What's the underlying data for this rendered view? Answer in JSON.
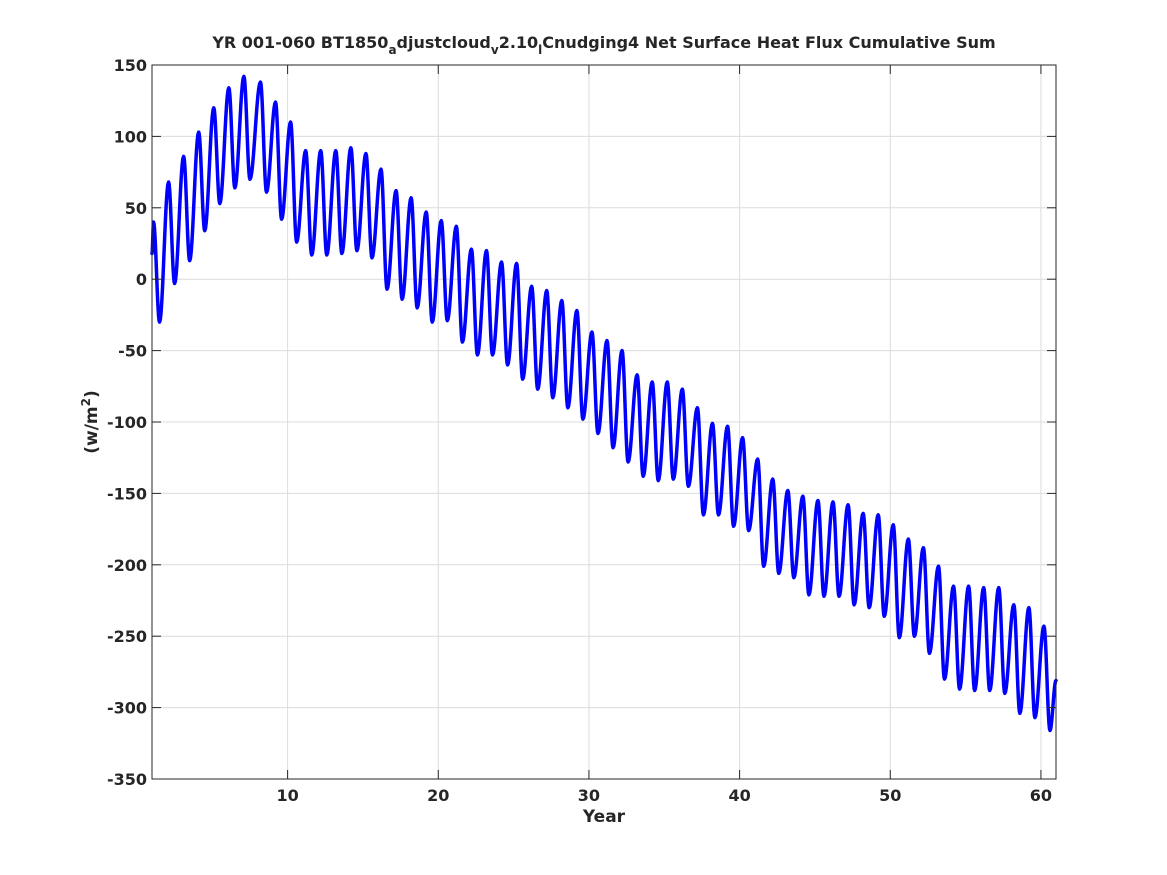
{
  "chart_data": {
    "type": "line",
    "title_parts": [
      {
        "text": "YR 001-060 BT1850",
        "sub": false
      },
      {
        "text": "a",
        "sub": true
      },
      {
        "text": "djustcloud",
        "sub": false
      },
      {
        "text": "v",
        "sub": true
      },
      {
        "text": "2.10",
        "sub": false
      },
      {
        "text": "l",
        "sub": true
      },
      {
        "text": "Cnudging4 Net Surface Heat Flux  Cumulative Sum",
        "sub": false
      }
    ],
    "xlabel": "Year",
    "ylabel": "(w/m",
    "ylabel_sup": "2",
    "ylabel_close": ")",
    "xlim": [
      1,
      61
    ],
    "ylim": [
      -350,
      150
    ],
    "xticks": [
      10,
      20,
      30,
      40,
      50,
      60
    ],
    "xtick_labels": [
      "10",
      "20",
      "30",
      "40",
      "50",
      "60"
    ],
    "yticks": [
      150,
      100,
      50,
      0,
      -50,
      -100,
      -150,
      -200,
      -250,
      -300,
      -350
    ],
    "ytick_labels": [
      "150",
      "100",
      "50",
      "0",
      "-50",
      "-100",
      "-150",
      "-200",
      "-250",
      "-300",
      "-350"
    ],
    "grid": true,
    "line_color": "#0000ff",
    "series": [
      {
        "note": "annual-cycle oscillation; peaks/troughs per year",
        "peaks": [
          [
            1.1,
            40
          ],
          [
            2.1,
            68
          ],
          [
            3.1,
            86
          ],
          [
            4.1,
            103
          ],
          [
            5.1,
            120
          ],
          [
            6.1,
            134
          ],
          [
            7.1,
            142
          ],
          [
            8.2,
            138
          ],
          [
            9.2,
            124
          ],
          [
            10.2,
            110
          ],
          [
            11.2,
            90
          ],
          [
            12.2,
            90
          ],
          [
            13.2,
            90
          ],
          [
            14.2,
            92
          ],
          [
            15.2,
            88
          ],
          [
            16.2,
            77
          ],
          [
            17.2,
            62
          ],
          [
            18.2,
            57
          ],
          [
            19.2,
            47
          ],
          [
            20.2,
            41
          ],
          [
            21.2,
            37
          ],
          [
            22.2,
            21
          ],
          [
            23.2,
            20
          ],
          [
            24.2,
            12
          ],
          [
            25.2,
            11
          ],
          [
            26.2,
            -5
          ],
          [
            27.2,
            -8
          ],
          [
            28.2,
            -15
          ],
          [
            29.2,
            -22
          ],
          [
            30.2,
            -37
          ],
          [
            31.2,
            -43
          ],
          [
            32.2,
            -50
          ],
          [
            33.2,
            -67
          ],
          [
            34.2,
            -72
          ],
          [
            35.2,
            -72
          ],
          [
            36.2,
            -77
          ],
          [
            37.2,
            -90
          ],
          [
            38.2,
            -101
          ],
          [
            39.2,
            -103
          ],
          [
            40.2,
            -111
          ],
          [
            41.2,
            -126
          ],
          [
            42.2,
            -140
          ],
          [
            43.2,
            -148
          ],
          [
            44.2,
            -152
          ],
          [
            45.2,
            -155
          ],
          [
            46.2,
            -156
          ],
          [
            47.2,
            -158
          ],
          [
            48.2,
            -164
          ],
          [
            49.2,
            -165
          ],
          [
            50.2,
            -172
          ],
          [
            51.2,
            -182
          ],
          [
            52.2,
            -188
          ],
          [
            53.2,
            -201
          ],
          [
            54.2,
            -215
          ],
          [
            55.2,
            -215
          ],
          [
            56.2,
            -216
          ],
          [
            57.2,
            -216
          ],
          [
            58.2,
            -228
          ],
          [
            59.2,
            -230
          ],
          [
            60.2,
            -243
          ]
        ],
        "troughs": [
          [
            1.5,
            -30
          ],
          [
            2.5,
            -3
          ],
          [
            3.5,
            13
          ],
          [
            4.5,
            34
          ],
          [
            5.5,
            53
          ],
          [
            6.5,
            64
          ],
          [
            7.5,
            70
          ],
          [
            8.6,
            61
          ],
          [
            9.6,
            42
          ],
          [
            10.6,
            26
          ],
          [
            11.6,
            17
          ],
          [
            12.6,
            17
          ],
          [
            13.6,
            18
          ],
          [
            14.6,
            20
          ],
          [
            15.6,
            15
          ],
          [
            16.6,
            -7
          ],
          [
            17.6,
            -14
          ],
          [
            18.6,
            -20
          ],
          [
            19.6,
            -30
          ],
          [
            20.6,
            -29
          ],
          [
            21.6,
            -44
          ],
          [
            22.6,
            -53
          ],
          [
            23.6,
            -53
          ],
          [
            24.6,
            -60
          ],
          [
            25.6,
            -70
          ],
          [
            26.6,
            -77
          ],
          [
            27.6,
            -83
          ],
          [
            28.6,
            -90
          ],
          [
            29.6,
            -98
          ],
          [
            30.6,
            -108
          ],
          [
            31.6,
            -118
          ],
          [
            32.6,
            -128
          ],
          [
            33.6,
            -138
          ],
          [
            34.6,
            -141
          ],
          [
            35.6,
            -140
          ],
          [
            36.6,
            -145
          ],
          [
            37.6,
            -165
          ],
          [
            38.6,
            -165
          ],
          [
            39.6,
            -173
          ],
          [
            40.6,
            -176
          ],
          [
            41.6,
            -201
          ],
          [
            42.6,
            -206
          ],
          [
            43.6,
            -209
          ],
          [
            44.6,
            -221
          ],
          [
            45.6,
            -222
          ],
          [
            46.6,
            -222
          ],
          [
            47.6,
            -228
          ],
          [
            48.6,
            -230
          ],
          [
            49.6,
            -236
          ],
          [
            50.6,
            -251
          ],
          [
            51.6,
            -250
          ],
          [
            52.6,
            -262
          ],
          [
            53.6,
            -280
          ],
          [
            54.6,
            -287
          ],
          [
            55.6,
            -288
          ],
          [
            56.6,
            -288
          ],
          [
            57.6,
            -290
          ],
          [
            58.6,
            -304
          ],
          [
            59.6,
            -307
          ],
          [
            60.6,
            -316
          ]
        ],
        "start": [
          1.0,
          18
        ],
        "end": [
          61.0,
          -281
        ]
      }
    ]
  }
}
